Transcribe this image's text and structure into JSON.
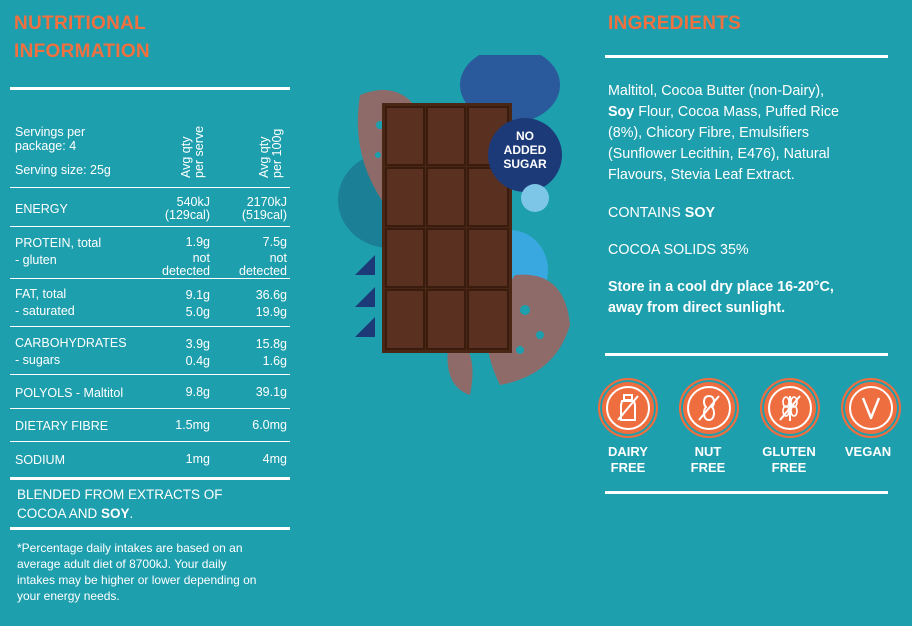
{
  "nutrition": {
    "title_line1": "NUTRITIONAL",
    "title_line2": "INFORMATION",
    "servings_line1": "Servings per",
    "servings_line2": "package: 4",
    "serving_size": "Serving size: 25g",
    "col1_line1": "Avg qty",
    "col1_line2": "per serve",
    "col2_line1": "Avg qty",
    "col2_line2": "per 100g",
    "rows": [
      {
        "label": "ENERGY",
        "sub": "",
        "v1a": "540kJ",
        "v1b": "(129cal)",
        "v2a": "2170kJ",
        "v2b": "(519cal)"
      },
      {
        "label": "PROTEIN, total",
        "sub": "- gluten",
        "v1a": "1.9g",
        "v1b": "not",
        "v1c": "detected",
        "v2a": "7.5g",
        "v2b": "not",
        "v2c": "detected"
      },
      {
        "label": "FAT, total",
        "sub": "- saturated",
        "v1a": "9.1g",
        "v1b": "5.0g",
        "v2a": "36.6g",
        "v2b": "19.9g"
      },
      {
        "label": "CARBOHYDRATES",
        "sub": "- sugars",
        "v1a": "3.9g",
        "v1b": "0.4g",
        "v2a": "15.8g",
        "v2b": "1.6g"
      },
      {
        "label": "POLYOLS - Maltitol",
        "v1a": "9.8g",
        "v2a": "39.1g"
      },
      {
        "label": "DIETARY FIBRE",
        "v1a": "1.5mg",
        "v2a": "6.0mg"
      },
      {
        "label": "SODIUM",
        "v1a": "1mg",
        "v2a": "4mg"
      }
    ],
    "blend_line1": "BLENDED FROM EXTRACTS OF",
    "blend_line2_a": "COCOA AND ",
    "blend_line2_b": "SOY",
    "blend_line2_c": ".",
    "footnote_1": "*Percentage daily intakes are based on an",
    "footnote_2": "average adult diet of 8700kJ.  Your daily",
    "footnote_3": "intakes may be higher or lower depending on",
    "footnote_4": "your energy needs."
  },
  "product": {
    "badge_line1": "NO",
    "badge_line2": "ADDED",
    "badge_line3": "SUGAR"
  },
  "ingredients": {
    "title": "INGREDIENTS",
    "l1": "Maltitol, Cocoa Butter (non-Dairy),",
    "l2_bold": "Soy",
    "l2_rest": " Flour, Cocoa Mass, Puffed Rice",
    "l3": "(8%), Chicory Fibre, Emulsifiers",
    "l4": "(Sunflower Lecithin, E476), Natural",
    "l5": "Flavours, Stevia Leaf Extract.",
    "contains_a": "CONTAINS ",
    "contains_b": "SOY",
    "cocoa_solids": "COCOA SOLIDS 35%",
    "storage_1": "Store in a cool dry place 16-20°C,",
    "storage_2": "away from direct sunlight."
  },
  "badges": [
    {
      "icon": "milk-bottle-icon",
      "line1": "DAIRY",
      "line2": "FREE"
    },
    {
      "icon": "peanut-icon",
      "line1": "NUT",
      "line2": "FREE"
    },
    {
      "icon": "wheat-icon",
      "line1": "GLUTEN",
      "line2": "FREE"
    },
    {
      "icon": "vegan-v-icon",
      "line1": "VEGAN",
      "line2": ""
    }
  ],
  "colors": {
    "background": "#1e9fae",
    "accent_orange": "#f0703f",
    "chocolate": "#4a2615",
    "navy": "#1d3a78"
  }
}
